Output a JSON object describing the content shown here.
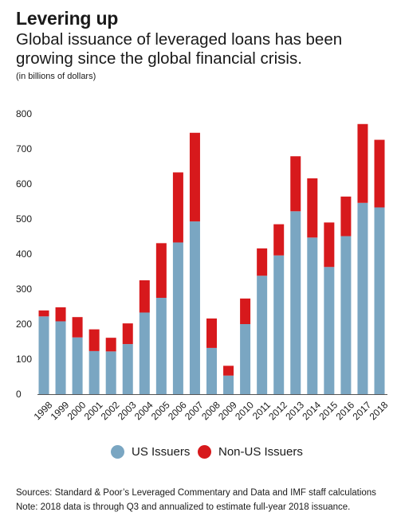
{
  "header": {
    "title": "Levering up",
    "subtitle": "Global issuance of leveraged loans has been growing since the global financial crisis.",
    "units": "(in billions of dollars)"
  },
  "legend": {
    "us_label": "US Issuers",
    "nonus_label": "Non-US Issuers"
  },
  "footer": {
    "sources": "Sources: Standard & Poor’s Leveraged Commentary and Data and IMF staff calculations",
    "note": "Note: 2018 data is through Q3 and annualized to estimate full-year 2018 issuance."
  },
  "colors": {
    "us": "#7aa6c2",
    "nonus": "#d7191c"
  },
  "chart_data": {
    "type": "bar",
    "stacked": true,
    "categories": [
      "1998",
      "1999",
      "2000",
      "2001",
      "2002",
      "2003",
      "2004",
      "2005",
      "2006",
      "2007",
      "2008",
      "2009",
      "2010",
      "2011",
      "2012",
      "2013",
      "2014",
      "2015",
      "2016",
      "2017",
      "2018"
    ],
    "series": [
      {
        "name": "US Issuers",
        "values": [
          222,
          208,
          162,
          123,
          122,
          143,
          233,
          275,
          433,
          493,
          132,
          53,
          200,
          338,
          396,
          522,
          447,
          363,
          451,
          546,
          533
        ]
      },
      {
        "name": "Non-US Issuers",
        "values": [
          17,
          40,
          58,
          62,
          39,
          59,
          92,
          156,
          200,
          253,
          84,
          28,
          73,
          78,
          89,
          157,
          169,
          127,
          113,
          225,
          193
        ]
      }
    ],
    "yticks": [
      0,
      100,
      200,
      300,
      400,
      500,
      600,
      700,
      800
    ],
    "ylim": [
      0,
      800
    ],
    "xlabel": "",
    "ylabel": "",
    "grid": false,
    "legend_position": "bottom"
  }
}
